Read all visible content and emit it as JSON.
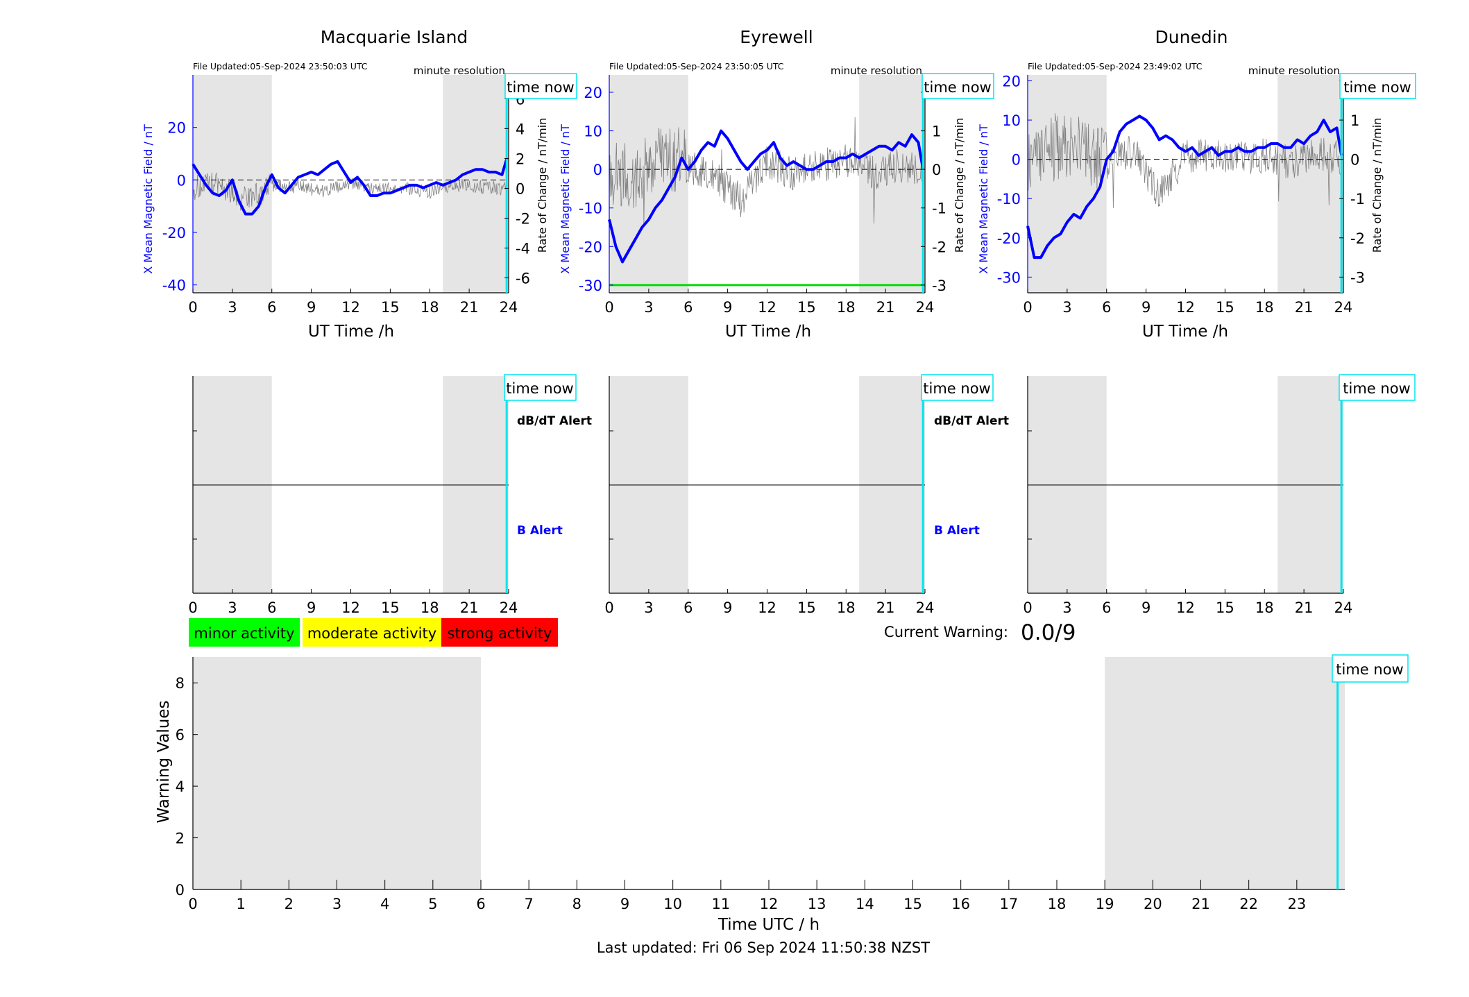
{
  "stations": [
    {
      "title": "Macquarie Island",
      "file_updated": "File Updated:05-Sep-2024 23:50:03 UTC",
      "resolution": "minute resolution",
      "time_now": "time now",
      "ylabel_left": "X Mean Magnetic Field / nT",
      "ylabel_right": "Rate of Change / nT/min",
      "xlabel": "UT Time /h",
      "alert_upper": "dB/dT Alert",
      "alert_lower": "B Alert"
    },
    {
      "title": "Eyrewell",
      "file_updated": "File Updated:05-Sep-2024 23:50:05 UTC",
      "resolution": "minute resolution",
      "time_now": "time now",
      "ylabel_left": "X Mean Magnetic Field / nT",
      "ylabel_right": "Rate of Change / nT/min",
      "xlabel": "UT Time /h",
      "alert_upper": "dB/dT Alert",
      "alert_lower": "B Alert"
    },
    {
      "title": "Dunedin",
      "file_updated": "File Updated:05-Sep-2024 23:49:02 UTC",
      "resolution": "minute resolution",
      "time_now": "time now",
      "ylabel_left": "X Mean Magnetic Field / nT",
      "ylabel_right": "Rate of Change / nT/min",
      "xlabel": "UT Time /h",
      "alert_upper": "",
      "alert_lower": ""
    }
  ],
  "legend": {
    "minor": "minor activity",
    "moderate": "moderate activity",
    "strong": "strong activity"
  },
  "current_warning_label": "Current Warning:",
  "current_warning_value": "0.0/9",
  "warning_time_now": "time now",
  "warning_ylabel": "Warning Values",
  "warning_xlabel": "Time UTC / h",
  "last_updated": "Last updated: Fri 06 Sep 2024 11:50:38 NZST",
  "colors": {
    "field": "#0000ff",
    "rate": "#808080",
    "time_now": "#00e5ee",
    "shade": "#e5e5e5",
    "threshold": "#00dd00",
    "minor": "#00ff00",
    "moderate": "#ffff00",
    "strong": "#ff0000"
  },
  "chart_data": [
    {
      "type": "line",
      "title": "Macquarie Island",
      "xlabel": "UT Time /h",
      "ylabel": "X Mean Magnetic Field / nT",
      "y2label": "Rate of Change / nT/min",
      "xlim": [
        0,
        24
      ],
      "xticks": [
        0,
        3,
        6,
        9,
        12,
        15,
        18,
        21,
        24
      ],
      "ylim": [
        -43,
        40
      ],
      "yticks": [
        -40,
        -20,
        0,
        20
      ],
      "y2lim": [
        -7,
        7.6
      ],
      "y2ticks": [
        -6,
        -4,
        -2,
        0,
        2,
        4,
        6
      ],
      "night_shading": [
        [
          0,
          6
        ],
        [
          19,
          24
        ]
      ],
      "time_now": 23.85,
      "series": [
        {
          "axis": "left",
          "x": [
            0,
            0.5,
            1,
            1.5,
            2,
            2.5,
            3,
            3.5,
            4,
            4.5,
            5,
            5.5,
            6,
            6.5,
            7,
            7.5,
            8,
            8.5,
            9,
            9.5,
            10,
            10.5,
            11,
            11.5,
            12,
            12.5,
            13,
            13.5,
            14,
            14.5,
            15,
            15.5,
            16,
            16.5,
            17,
            17.5,
            18,
            18.5,
            19,
            19.5,
            20,
            20.5,
            21,
            21.5,
            22,
            22.5,
            23,
            23.5,
            23.85
          ],
          "y": [
            6,
            2,
            -2,
            -5,
            -6,
            -4,
            0,
            -8,
            -13,
            -13,
            -10,
            -3,
            2,
            -3,
            -5,
            -2,
            1,
            2,
            3,
            2,
            4,
            6,
            7,
            3,
            -1,
            1,
            -2,
            -6,
            -6,
            -5,
            -5,
            -4,
            -3,
            -2,
            -2,
            -3,
            -2,
            -1,
            -2,
            -1,
            0,
            2,
            3,
            4,
            4,
            3,
            3,
            2,
            8
          ]
        },
        {
          "axis": "right",
          "x": [
            0,
            2,
            4,
            6,
            8,
            10,
            12,
            14,
            16,
            18,
            20,
            22,
            23.85
          ],
          "y": [
            0,
            0.3,
            -0.8,
            0.2,
            0.1,
            -0.2,
            0.3,
            -0.1,
            0.1,
            -0.3,
            0.2,
            0.1,
            0
          ]
        }
      ]
    },
    {
      "type": "line",
      "title": "Eyrewell",
      "xlabel": "UT Time /h",
      "ylabel": "X Mean Magnetic Field / nT",
      "y2label": "Rate of Change / nT/min",
      "xlim": [
        0,
        24
      ],
      "xticks": [
        0,
        3,
        6,
        9,
        12,
        15,
        18,
        21,
        24
      ],
      "ylim": [
        -32,
        24.5
      ],
      "yticks": [
        -30,
        -20,
        -10,
        0,
        10,
        20
      ],
      "y2lim": [
        -3.2,
        2.45
      ],
      "y2ticks": [
        -3,
        -2,
        -1,
        0,
        1,
        2
      ],
      "night_shading": [
        [
          0,
          6
        ],
        [
          19,
          24
        ]
      ],
      "time_now": 23.85,
      "threshold": -3,
      "series": [
        {
          "axis": "left",
          "x": [
            0,
            0.5,
            1,
            1.5,
            2,
            2.5,
            3,
            3.5,
            4,
            4.5,
            5,
            5.5,
            6,
            6.5,
            7,
            7.5,
            8,
            8.5,
            9,
            9.5,
            10,
            10.5,
            11,
            11.5,
            12,
            12.5,
            13,
            13.5,
            14,
            14.5,
            15,
            15.5,
            16,
            16.5,
            17,
            17.5,
            18,
            18.5,
            19,
            19.5,
            20,
            20.5,
            21,
            21.5,
            22,
            22.5,
            23,
            23.5,
            23.85
          ],
          "y": [
            -13,
            -20,
            -24,
            -21,
            -18,
            -15,
            -13,
            -10,
            -8,
            -5,
            -2,
            3,
            0,
            2,
            5,
            7,
            6,
            10,
            8,
            5,
            2,
            0,
            2,
            4,
            5,
            7,
            3,
            1,
            2,
            1,
            0,
            0,
            1,
            2,
            2,
            3,
            3,
            4,
            3,
            4,
            5,
            6,
            6,
            5,
            7,
            6,
            9,
            7,
            0
          ]
        },
        {
          "axis": "right",
          "x": [
            0,
            2,
            4,
            6,
            8,
            10,
            12,
            14,
            16,
            18,
            20,
            22,
            23.85
          ],
          "y": [
            0,
            -0.3,
            0.4,
            0.1,
            -0.2,
            -0.8,
            0.2,
            -0.1,
            0.1,
            0.2,
            -0.1,
            0.1,
            0
          ]
        }
      ]
    },
    {
      "type": "line",
      "title": "Dunedin",
      "xlabel": "UT Time /h",
      "ylabel": "X Mean Magnetic Field / nT",
      "y2label": "Rate of Change / nT/min",
      "xlim": [
        0,
        24
      ],
      "xticks": [
        0,
        3,
        6,
        9,
        12,
        15,
        18,
        21,
        24
      ],
      "ylim": [
        -34,
        21.5
      ],
      "yticks": [
        -30,
        -20,
        -10,
        0,
        10,
        20
      ],
      "y2lim": [
        -3.4,
        2.15
      ],
      "y2ticks": [
        -3,
        -2,
        -1,
        0,
        1,
        2
      ],
      "night_shading": [
        [
          0,
          6
        ],
        [
          19,
          24
        ]
      ],
      "time_now": 23.85,
      "series": [
        {
          "axis": "left",
          "x": [
            0,
            0.5,
            1,
            1.5,
            2,
            2.5,
            3,
            3.5,
            4,
            4.5,
            5,
            5.5,
            6,
            6.5,
            7,
            7.5,
            8,
            8.5,
            9,
            9.5,
            10,
            10.5,
            11,
            11.5,
            12,
            12.5,
            13,
            13.5,
            14,
            14.5,
            15,
            15.5,
            16,
            16.5,
            17,
            17.5,
            18,
            18.5,
            19,
            19.5,
            20,
            20.5,
            21,
            21.5,
            22,
            22.5,
            23,
            23.5,
            23.85
          ],
          "y": [
            -17,
            -25,
            -25,
            -22,
            -20,
            -19,
            -16,
            -14,
            -15,
            -12,
            -10,
            -7,
            0,
            2,
            7,
            9,
            10,
            11,
            10,
            8,
            5,
            6,
            5,
            3,
            2,
            3,
            1,
            2,
            3,
            1,
            2,
            2,
            3,
            2,
            2,
            3,
            3,
            4,
            4,
            3,
            3,
            5,
            4,
            6,
            7,
            10,
            7,
            8,
            1
          ]
        },
        {
          "axis": "right",
          "x": [
            0,
            2,
            4,
            6,
            8,
            10,
            12,
            14,
            16,
            18,
            20,
            22,
            23.85
          ],
          "y": [
            0.1,
            0.3,
            0.2,
            -0.1,
            0.2,
            -0.9,
            0.1,
            0.1,
            0,
            0.1,
            -0.1,
            0.2,
            0
          ]
        }
      ]
    },
    {
      "type": "bar",
      "title": "",
      "xlabel": "Time UTC / h",
      "ylabel": "Warning Values",
      "xlim": [
        0,
        24
      ],
      "xticks": [
        0,
        1,
        2,
        3,
        4,
        5,
        6,
        7,
        8,
        9,
        10,
        11,
        12,
        13,
        14,
        15,
        16,
        17,
        18,
        19,
        20,
        21,
        22,
        23
      ],
      "ylim": [
        0,
        9
      ],
      "yticks": [
        0,
        2,
        4,
        6,
        8
      ],
      "night_shading": [
        [
          0,
          6
        ],
        [
          19,
          24
        ]
      ],
      "time_now": 23.85,
      "values": []
    }
  ]
}
